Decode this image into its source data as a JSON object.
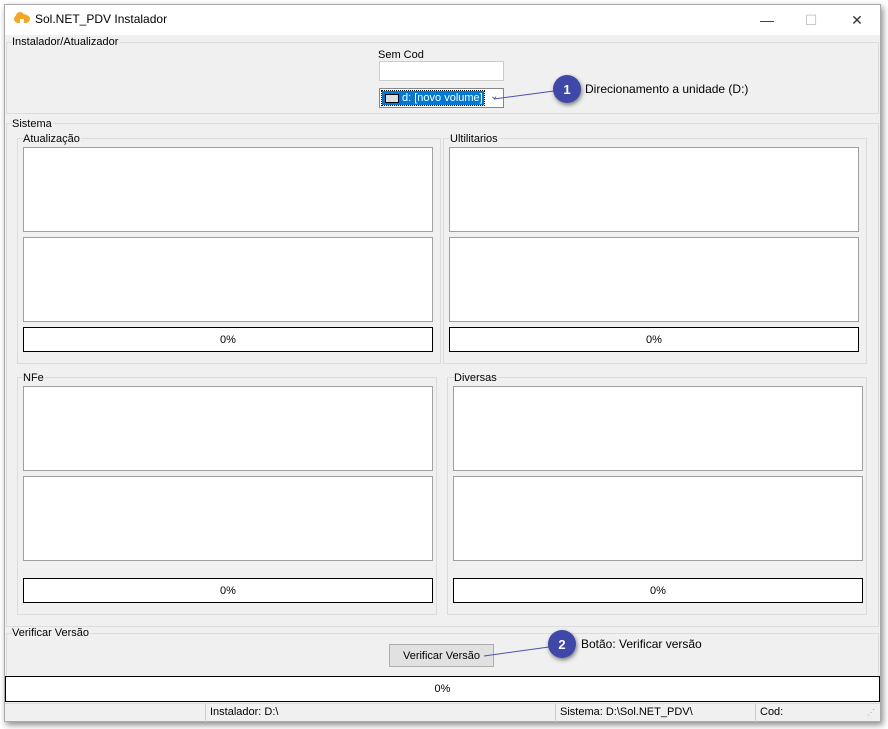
{
  "window": {
    "title": "Sol.NET_PDV Instalador",
    "minimize": "—",
    "maximize": "☐",
    "close": "✕"
  },
  "installer_group": {
    "label": "Instalador/Atualizador",
    "code_label": "Sem Cod",
    "code_value": "",
    "drive_select": "d: [novo volume]"
  },
  "system_group": {
    "label": "Sistema",
    "panels": [
      {
        "label": "Atualização",
        "progress": "0%"
      },
      {
        "label": "Ultilitarios",
        "progress": "0%"
      },
      {
        "label": "NFe",
        "progress": "0%"
      },
      {
        "label": "Diversas",
        "progress": "0%"
      }
    ]
  },
  "verify_group": {
    "label": "Verificar Versão",
    "button": "Verificar Versão"
  },
  "overall_progress": "0%",
  "status_bar": {
    "installer": "Instalador: D:\\",
    "system": "Sistema: D:\\Sol.NET_PDV\\",
    "code": "Cod:"
  },
  "callouts": [
    {
      "number": "1",
      "text": "Direcionamento a unidade (D:)"
    },
    {
      "number": "2",
      "text": "Botão: Verificar versão"
    }
  ],
  "colors": {
    "callout": "#3f48a8",
    "selection": "#0078d7",
    "icon": "#f5a623"
  }
}
